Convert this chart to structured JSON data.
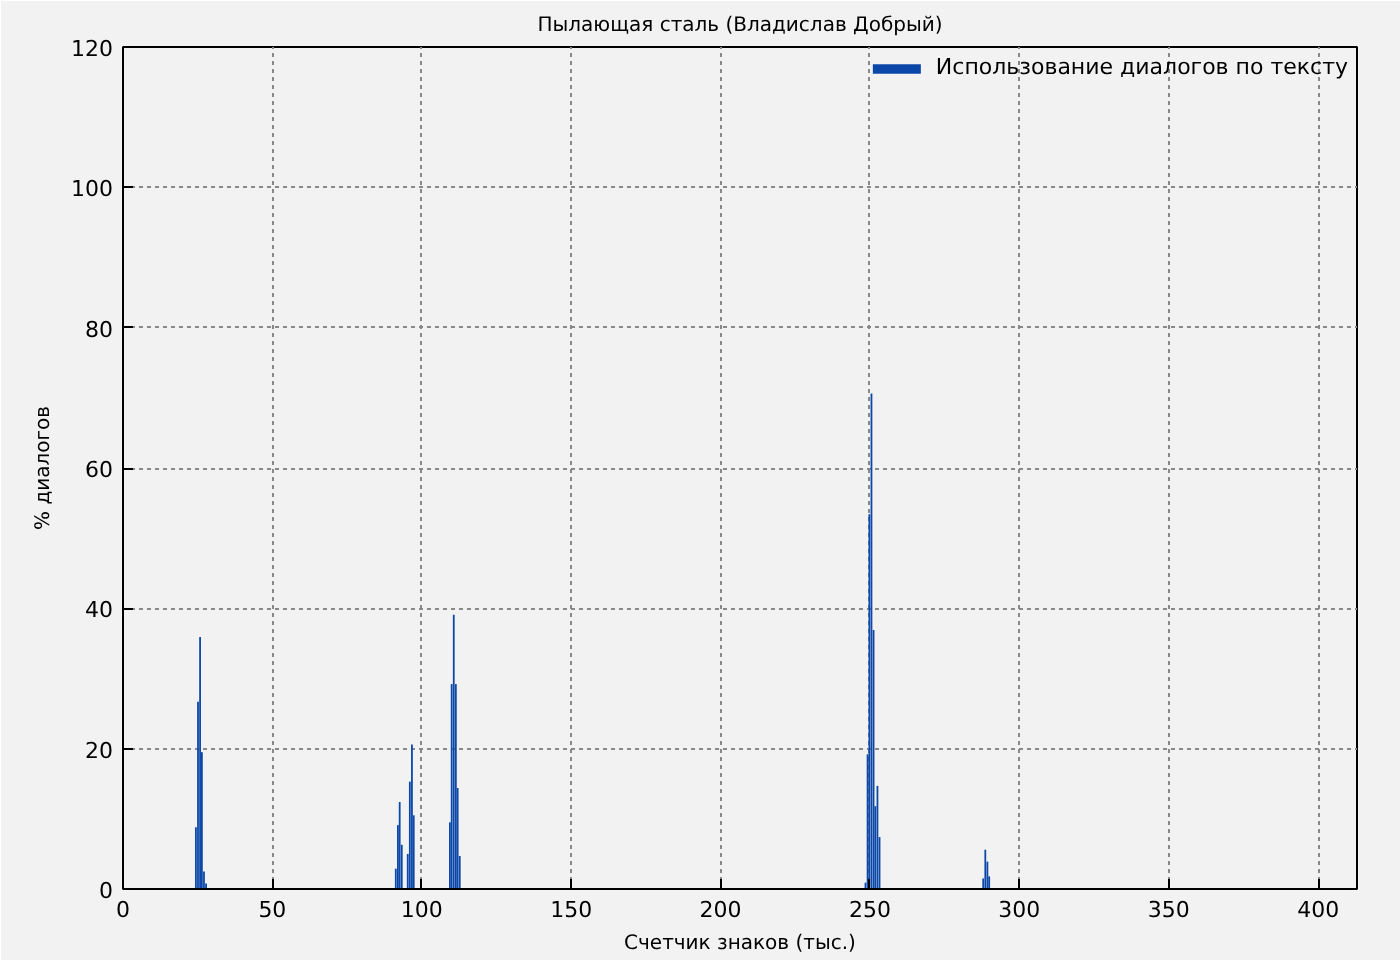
{
  "chart_data": {
    "type": "bar",
    "title": "Пылающая сталь (Владислав Добрый)",
    "xlabel": "Счетчик знаков (тыс.)",
    "ylabel": "% диалогов",
    "x": [
      24.4,
      25.1,
      25.8,
      26.4,
      27.1,
      27.8,
      91.3,
      92.0,
      92.6,
      93.3,
      95.3,
      96.0,
      96.7,
      97.3,
      109.4,
      110.0,
      110.7,
      111.4,
      112.0,
      112.7,
      248.5,
      249.2,
      249.8,
      250.5,
      251.2,
      251.8,
      252.5,
      253.2,
      287.9,
      288.6,
      289.3,
      289.9
    ],
    "series": [
      {
        "name": "Использование диалогов по тексту",
        "color": "#0a47a8",
        "values": [
          8.8,
          26.7,
          35.9,
          19.5,
          2.5,
          0.8,
          2.9,
          9.1,
          12.4,
          6.3,
          5.0,
          15.3,
          20.6,
          10.5,
          9.5,
          29.2,
          39.1,
          29.2,
          14.4,
          4.7,
          0.9,
          19.2,
          53.4,
          70.6,
          36.9,
          11.8,
          14.7,
          7.4,
          1.5,
          5.6,
          3.9,
          1.8
        ]
      }
    ],
    "xlim": [
      0,
      413
    ],
    "ylim": [
      0,
      120
    ],
    "xticks": [
      0,
      50,
      100,
      150,
      200,
      250,
      300,
      350,
      400
    ],
    "yticks": [
      0,
      20,
      40,
      60,
      80,
      100,
      120
    ],
    "grid": true,
    "legend": "top right"
  }
}
